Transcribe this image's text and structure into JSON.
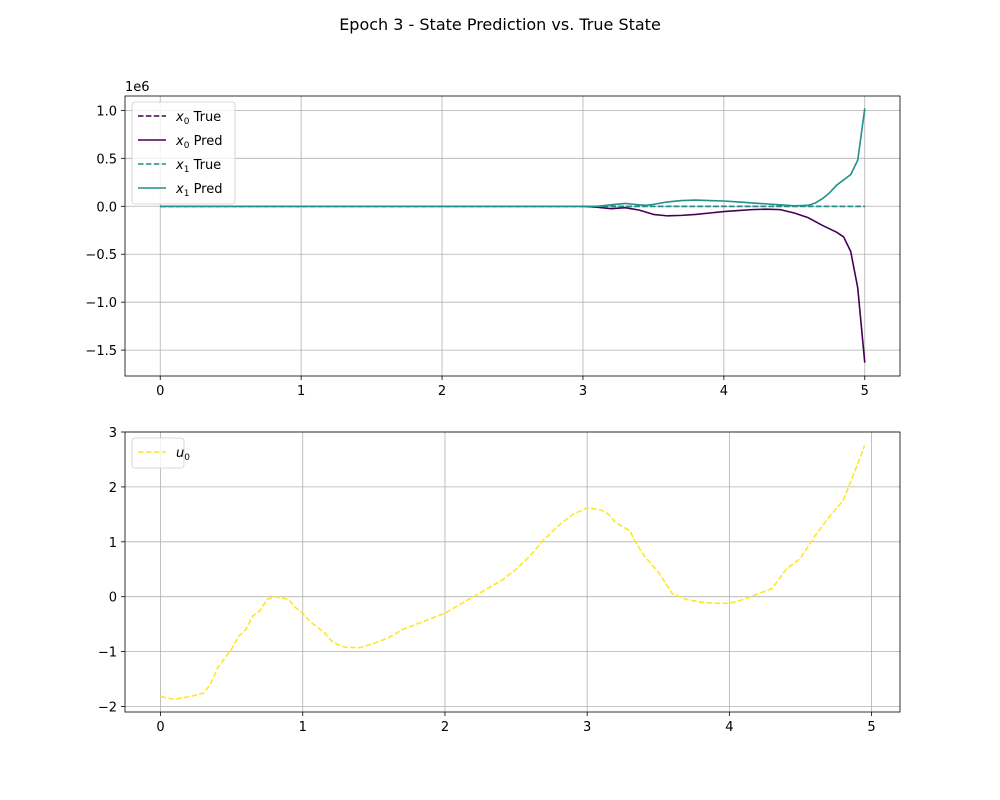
{
  "figure": {
    "title": "Epoch 3 - State Prediction vs. True State"
  },
  "chart_data": [
    {
      "type": "line",
      "title": "",
      "xlabel": "",
      "ylabel": "",
      "y_offset_label": "1e6",
      "xlim": [
        -0.25,
        5.25
      ],
      "ylim": [
        -1.77,
        1.15
      ],
      "xticks": [
        0,
        1,
        2,
        3,
        4,
        5
      ],
      "xtick_labels": [
        "0",
        "1",
        "2",
        "3",
        "4",
        "5"
      ],
      "yticks": [
        -1.5,
        -1.0,
        -0.5,
        0.0,
        0.5,
        1.0
      ],
      "ytick_labels": [
        "−1.5",
        "−1.0",
        "−0.5",
        "0.0",
        "0.5",
        "1.0"
      ],
      "grid": true,
      "legend_position": "top-left",
      "series": [
        {
          "name": "x0 True",
          "legend_base": "x",
          "legend_sub": "0",
          "legend_suffix": " True",
          "color": "#440154",
          "dash": "dashed",
          "x": [
            0,
            0.5,
            1,
            1.5,
            2,
            2.5,
            3,
            3.5,
            4,
            4.5,
            5
          ],
          "y": [
            0,
            0,
            0,
            0,
            0,
            0,
            0,
            0,
            0,
            0,
            0
          ]
        },
        {
          "name": "x0 Pred",
          "legend_base": "x",
          "legend_sub": "0",
          "legend_suffix": " Pred",
          "color": "#440154",
          "dash": "solid",
          "x": [
            0,
            0.5,
            1,
            1.5,
            2,
            2.5,
            3,
            3.1,
            3.2,
            3.3,
            3.4,
            3.5,
            3.6,
            3.7,
            3.8,
            3.9,
            4.0,
            4.1,
            4.2,
            4.3,
            4.4,
            4.5,
            4.6,
            4.7,
            4.8,
            4.85,
            4.9,
            4.95,
            5.0
          ],
          "y": [
            0,
            0,
            0,
            0,
            0,
            0,
            0,
            -0.01,
            -0.025,
            -0.015,
            -0.04,
            -0.085,
            -0.1,
            -0.095,
            -0.085,
            -0.07,
            -0.055,
            -0.045,
            -0.035,
            -0.03,
            -0.035,
            -0.07,
            -0.12,
            -0.2,
            -0.27,
            -0.32,
            -0.47,
            -0.85,
            -1.63
          ]
        },
        {
          "name": "x1 True",
          "legend_base": "x",
          "legend_sub": "1",
          "legend_suffix": " True",
          "color": "#21918c",
          "dash": "dashed",
          "x": [
            0,
            0.5,
            1,
            1.5,
            2,
            2.5,
            3,
            3.5,
            4,
            4.5,
            5
          ],
          "y": [
            0,
            0,
            0,
            0,
            0,
            0,
            0,
            0,
            0,
            0,
            0
          ]
        },
        {
          "name": "x1 Pred",
          "legend_base": "x",
          "legend_sub": "1",
          "legend_suffix": " Pred",
          "color": "#21918c",
          "dash": "solid",
          "x": [
            0,
            0.5,
            1,
            1.5,
            2,
            2.5,
            3,
            3.1,
            3.2,
            3.3,
            3.4,
            3.45,
            3.5,
            3.6,
            3.7,
            3.8,
            3.9,
            4.0,
            4.1,
            4.2,
            4.3,
            4.4,
            4.5,
            4.6,
            4.65,
            4.7,
            4.75,
            4.8,
            4.9,
            4.95,
            5.0
          ],
          "y": [
            0,
            0,
            0,
            0,
            0,
            0,
            0,
            0,
            0.015,
            0.03,
            0.015,
            0.01,
            0.02,
            0.045,
            0.06,
            0.065,
            0.06,
            0.055,
            0.045,
            0.035,
            0.025,
            0.015,
            0.005,
            0.01,
            0.035,
            0.08,
            0.14,
            0.22,
            0.33,
            0.48,
            1.02
          ]
        }
      ]
    },
    {
      "type": "line",
      "title": "",
      "xlabel": "",
      "ylabel": "",
      "xlim": [
        -0.25,
        5.2
      ],
      "ylim": [
        -2.1,
        3.0
      ],
      "xticks": [
        0,
        1,
        2,
        3,
        4,
        5
      ],
      "xtick_labels": [
        "0",
        "1",
        "2",
        "3",
        "4",
        "5"
      ],
      "yticks": [
        -2,
        -1,
        0,
        1,
        2,
        3
      ],
      "ytick_labels": [
        "−2",
        "−1",
        "0",
        "1",
        "2",
        "3"
      ],
      "grid": true,
      "legend_position": "top-left",
      "series": [
        {
          "name": "u0",
          "legend_base": "u",
          "legend_sub": "0",
          "legend_suffix": "",
          "color": "#fde725",
          "dash": "dashed",
          "x": [
            0,
            0.1,
            0.2,
            0.3,
            0.35,
            0.4,
            0.5,
            0.55,
            0.6,
            0.65,
            0.7,
            0.75,
            0.8,
            0.85,
            0.9,
            0.95,
            1.0,
            1.05,
            1.1,
            1.15,
            1.2,
            1.25,
            1.3,
            1.4,
            1.5,
            1.6,
            1.7,
            1.8,
            1.9,
            2.0,
            2.1,
            2.2,
            2.3,
            2.4,
            2.5,
            2.6,
            2.7,
            2.8,
            2.9,
            3.0,
            3.1,
            3.15,
            3.2,
            3.3,
            3.35,
            3.4,
            3.5,
            3.6,
            3.7,
            3.8,
            3.9,
            4.0,
            4.1,
            4.2,
            4.3,
            4.4,
            4.5,
            4.6,
            4.7,
            4.8,
            4.9,
            4.95
          ],
          "y": [
            -1.82,
            -1.87,
            -1.82,
            -1.76,
            -1.6,
            -1.3,
            -0.95,
            -0.72,
            -0.6,
            -0.35,
            -0.25,
            -0.05,
            0.0,
            -0.02,
            -0.05,
            -0.2,
            -0.3,
            -0.45,
            -0.55,
            -0.65,
            -0.8,
            -0.88,
            -0.92,
            -0.93,
            -0.85,
            -0.75,
            -0.6,
            -0.5,
            -0.4,
            -0.3,
            -0.15,
            0.0,
            0.15,
            0.3,
            0.5,
            0.75,
            1.05,
            1.3,
            1.5,
            1.62,
            1.58,
            1.5,
            1.35,
            1.2,
            0.95,
            0.75,
            0.45,
            0.05,
            -0.05,
            -0.1,
            -0.12,
            -0.12,
            -0.05,
            0.05,
            0.15,
            0.5,
            0.7,
            1.1,
            1.45,
            1.75,
            2.4,
            2.75
          ]
        }
      ]
    }
  ]
}
